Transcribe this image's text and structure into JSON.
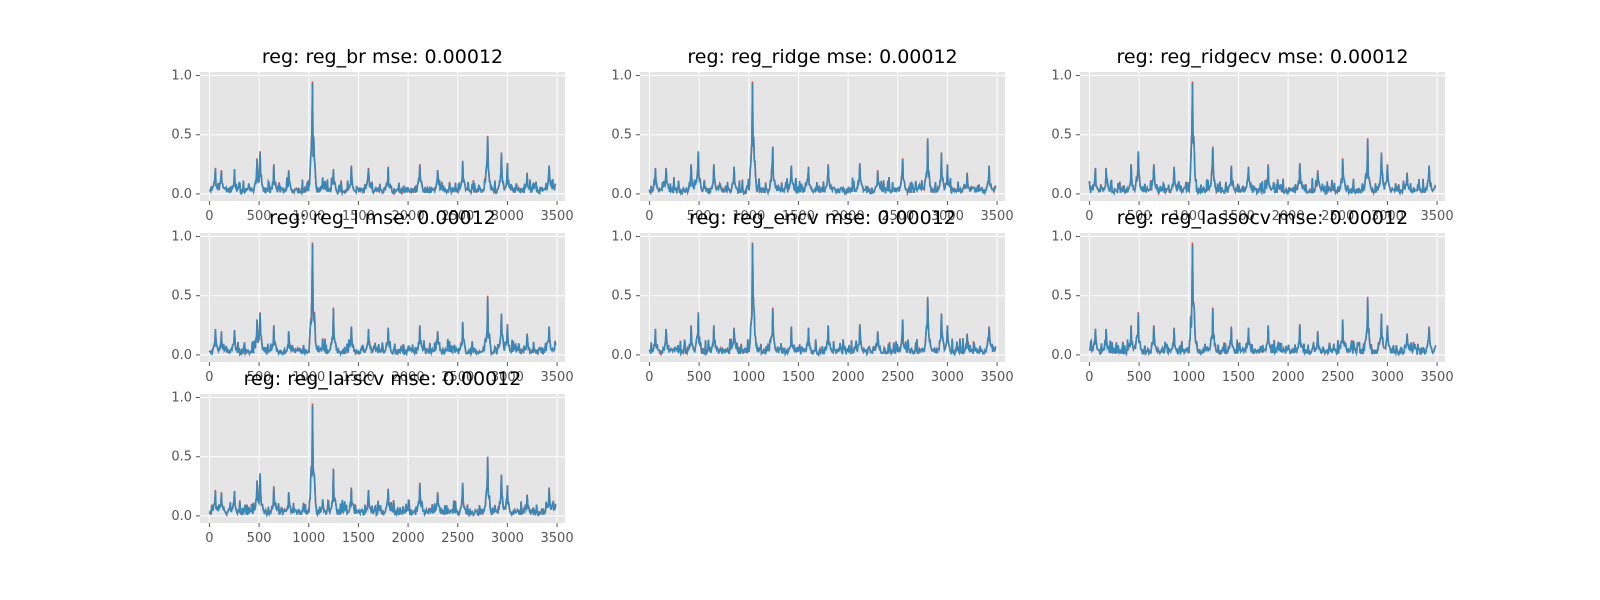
{
  "chart_data": [
    {
      "type": "line",
      "title": "reg: reg_br mse: 0.00012",
      "xlim": [
        -95,
        3580
      ],
      "ylim": [
        -0.06,
        1.03
      ],
      "xticks": [
        0,
        500,
        1000,
        1500,
        2000,
        2500,
        3000,
        3500
      ],
      "yticks": [
        0.0,
        0.5,
        1.0
      ],
      "grid": true,
      "series": [
        {
          "color": "#E24A33"
        },
        {
          "color": "#348ABD"
        }
      ],
      "peaks": [
        [
          0,
          0.02
        ],
        [
          60,
          0.22
        ],
        [
          120,
          0.2
        ],
        [
          250,
          0.21
        ],
        [
          480,
          0.3
        ],
        [
          510,
          0.36
        ],
        [
          650,
          0.25
        ],
        [
          800,
          0.2
        ],
        [
          1040,
          0.95
        ],
        [
          1140,
          0.14
        ],
        [
          1250,
          0.21
        ],
        [
          1430,
          0.24
        ],
        [
          1600,
          0.22
        ],
        [
          1800,
          0.23
        ],
        [
          2120,
          0.25
        ],
        [
          2300,
          0.2
        ],
        [
          2550,
          0.28
        ],
        [
          2800,
          0.49
        ],
        [
          2940,
          0.35
        ],
        [
          3000,
          0.26
        ],
        [
          3200,
          0.18
        ],
        [
          3420,
          0.24
        ],
        [
          3490,
          0.15
        ]
      ]
    },
    {
      "type": "line",
      "title": "reg: reg_ridge mse: 0.00012",
      "xlim": [
        -95,
        3580
      ],
      "ylim": [
        -0.06,
        1.03
      ],
      "xticks": [
        0,
        500,
        1000,
        1500,
        2000,
        2500,
        3000,
        3500
      ],
      "yticks": [
        0.0,
        0.5,
        1.0
      ],
      "grid": true,
      "series": [
        {
          "color": "#E24A33"
        },
        {
          "color": "#348ABD"
        }
      ],
      "peaks": [
        [
          0,
          0.02
        ],
        [
          60,
          0.22
        ],
        [
          170,
          0.22
        ],
        [
          420,
          0.25
        ],
        [
          490,
          0.36
        ],
        [
          650,
          0.25
        ],
        [
          850,
          0.23
        ],
        [
          1040,
          0.95
        ],
        [
          1240,
          0.4
        ],
        [
          1430,
          0.24
        ],
        [
          1600,
          0.23
        ],
        [
          1800,
          0.25
        ],
        [
          2120,
          0.26
        ],
        [
          2300,
          0.2
        ],
        [
          2550,
          0.3
        ],
        [
          2800,
          0.47
        ],
        [
          2940,
          0.35
        ],
        [
          3000,
          0.25
        ],
        [
          3200,
          0.18
        ],
        [
          3420,
          0.24
        ],
        [
          3490,
          0.14
        ]
      ]
    },
    {
      "type": "line",
      "title": "reg: reg_ridgecv mse: 0.00012",
      "xlim": [
        -95,
        3580
      ],
      "ylim": [
        -0.06,
        1.03
      ],
      "xticks": [
        0,
        500,
        1000,
        1500,
        2000,
        2500,
        3000,
        3500
      ],
      "yticks": [
        0.0,
        0.5,
        1.0
      ],
      "grid": true,
      "series": [
        {
          "color": "#E24A33"
        },
        {
          "color": "#348ABD"
        }
      ],
      "peaks": [
        [
          0,
          0.02
        ],
        [
          60,
          0.22
        ],
        [
          170,
          0.22
        ],
        [
          420,
          0.25
        ],
        [
          490,
          0.36
        ],
        [
          650,
          0.25
        ],
        [
          850,
          0.23
        ],
        [
          1040,
          0.95
        ],
        [
          1240,
          0.4
        ],
        [
          1430,
          0.24
        ],
        [
          1600,
          0.23
        ],
        [
          1800,
          0.25
        ],
        [
          2120,
          0.26
        ],
        [
          2300,
          0.2
        ],
        [
          2550,
          0.3
        ],
        [
          2800,
          0.47
        ],
        [
          2940,
          0.35
        ],
        [
          3000,
          0.25
        ],
        [
          3200,
          0.18
        ],
        [
          3420,
          0.24
        ],
        [
          3490,
          0.14
        ]
      ]
    },
    {
      "type": "line",
      "title": "reg: reg_l mse: 0.00012",
      "xlim": [
        -95,
        3580
      ],
      "ylim": [
        -0.06,
        1.03
      ],
      "xticks": [
        0,
        500,
        1000,
        1500,
        2000,
        2500,
        3000,
        3500
      ],
      "yticks": [
        0.0,
        0.5,
        1.0
      ],
      "grid": true,
      "series": [
        {
          "color": "#E24A33"
        },
        {
          "color": "#348ABD"
        }
      ],
      "peaks": [
        [
          0,
          0.02
        ],
        [
          60,
          0.22
        ],
        [
          120,
          0.2
        ],
        [
          250,
          0.21
        ],
        [
          480,
          0.3
        ],
        [
          510,
          0.36
        ],
        [
          650,
          0.25
        ],
        [
          800,
          0.2
        ],
        [
          1040,
          0.95
        ],
        [
          1140,
          0.14
        ],
        [
          1250,
          0.4
        ],
        [
          1430,
          0.24
        ],
        [
          1600,
          0.22
        ],
        [
          1800,
          0.23
        ],
        [
          2120,
          0.25
        ],
        [
          2300,
          0.2
        ],
        [
          2550,
          0.28
        ],
        [
          2800,
          0.5
        ],
        [
          2940,
          0.35
        ],
        [
          3000,
          0.26
        ],
        [
          3200,
          0.18
        ],
        [
          3420,
          0.24
        ],
        [
          3490,
          0.15
        ]
      ]
    },
    {
      "type": "line",
      "title": "reg: reg_encv mse: 0.00012",
      "xlim": [
        -95,
        3580
      ],
      "ylim": [
        -0.06,
        1.03
      ],
      "xticks": [
        0,
        500,
        1000,
        1500,
        2000,
        2500,
        3000,
        3500
      ],
      "yticks": [
        0.0,
        0.5,
        1.0
      ],
      "grid": true,
      "series": [
        {
          "color": "#E24A33"
        },
        {
          "color": "#348ABD"
        }
      ],
      "peaks": [
        [
          0,
          0.02
        ],
        [
          60,
          0.22
        ],
        [
          170,
          0.22
        ],
        [
          420,
          0.25
        ],
        [
          490,
          0.36
        ],
        [
          650,
          0.25
        ],
        [
          850,
          0.23
        ],
        [
          1040,
          0.95
        ],
        [
          1240,
          0.4
        ],
        [
          1430,
          0.24
        ],
        [
          1600,
          0.23
        ],
        [
          1800,
          0.25
        ],
        [
          2120,
          0.26
        ],
        [
          2300,
          0.2
        ],
        [
          2550,
          0.3
        ],
        [
          2800,
          0.49
        ],
        [
          2940,
          0.35
        ],
        [
          3000,
          0.25
        ],
        [
          3200,
          0.18
        ],
        [
          3420,
          0.24
        ],
        [
          3490,
          0.14
        ]
      ]
    },
    {
      "type": "line",
      "title": "reg: reg_lassocv mse: 0.00012",
      "xlim": [
        -95,
        3580
      ],
      "ylim": [
        -0.06,
        1.03
      ],
      "xticks": [
        0,
        500,
        1000,
        1500,
        2000,
        2500,
        3000,
        3500
      ],
      "yticks": [
        0.0,
        0.5,
        1.0
      ],
      "grid": true,
      "series": [
        {
          "color": "#E24A33"
        },
        {
          "color": "#348ABD"
        }
      ],
      "peaks": [
        [
          0,
          0.02
        ],
        [
          60,
          0.22
        ],
        [
          170,
          0.22
        ],
        [
          420,
          0.25
        ],
        [
          490,
          0.36
        ],
        [
          650,
          0.25
        ],
        [
          850,
          0.23
        ],
        [
          1040,
          0.95
        ],
        [
          1240,
          0.4
        ],
        [
          1430,
          0.24
        ],
        [
          1600,
          0.23
        ],
        [
          1800,
          0.25
        ],
        [
          2120,
          0.26
        ],
        [
          2300,
          0.2
        ],
        [
          2550,
          0.3
        ],
        [
          2800,
          0.49
        ],
        [
          2940,
          0.35
        ],
        [
          3000,
          0.25
        ],
        [
          3200,
          0.18
        ],
        [
          3420,
          0.24
        ],
        [
          3490,
          0.14
        ]
      ]
    },
    {
      "type": "line",
      "title": "reg: reg_larscv mse: 0.00012",
      "xlim": [
        -95,
        3580
      ],
      "ylim": [
        -0.06,
        1.03
      ],
      "xticks": [
        0,
        500,
        1000,
        1500,
        2000,
        2500,
        3000,
        3500
      ],
      "yticks": [
        0.0,
        0.5,
        1.0
      ],
      "grid": true,
      "series": [
        {
          "color": "#E24A33"
        },
        {
          "color": "#348ABD"
        }
      ],
      "peaks": [
        [
          0,
          0.02
        ],
        [
          60,
          0.22
        ],
        [
          120,
          0.2
        ],
        [
          250,
          0.21
        ],
        [
          480,
          0.3
        ],
        [
          510,
          0.36
        ],
        [
          650,
          0.25
        ],
        [
          800,
          0.2
        ],
        [
          1040,
          0.95
        ],
        [
          1140,
          0.14
        ],
        [
          1250,
          0.4
        ],
        [
          1430,
          0.24
        ],
        [
          1600,
          0.22
        ],
        [
          1800,
          0.23
        ],
        [
          2120,
          0.28
        ],
        [
          2300,
          0.2
        ],
        [
          2550,
          0.28
        ],
        [
          2800,
          0.5
        ],
        [
          2940,
          0.35
        ],
        [
          3000,
          0.26
        ],
        [
          3200,
          0.18
        ],
        [
          3420,
          0.24
        ],
        [
          3490,
          0.15
        ]
      ]
    }
  ]
}
